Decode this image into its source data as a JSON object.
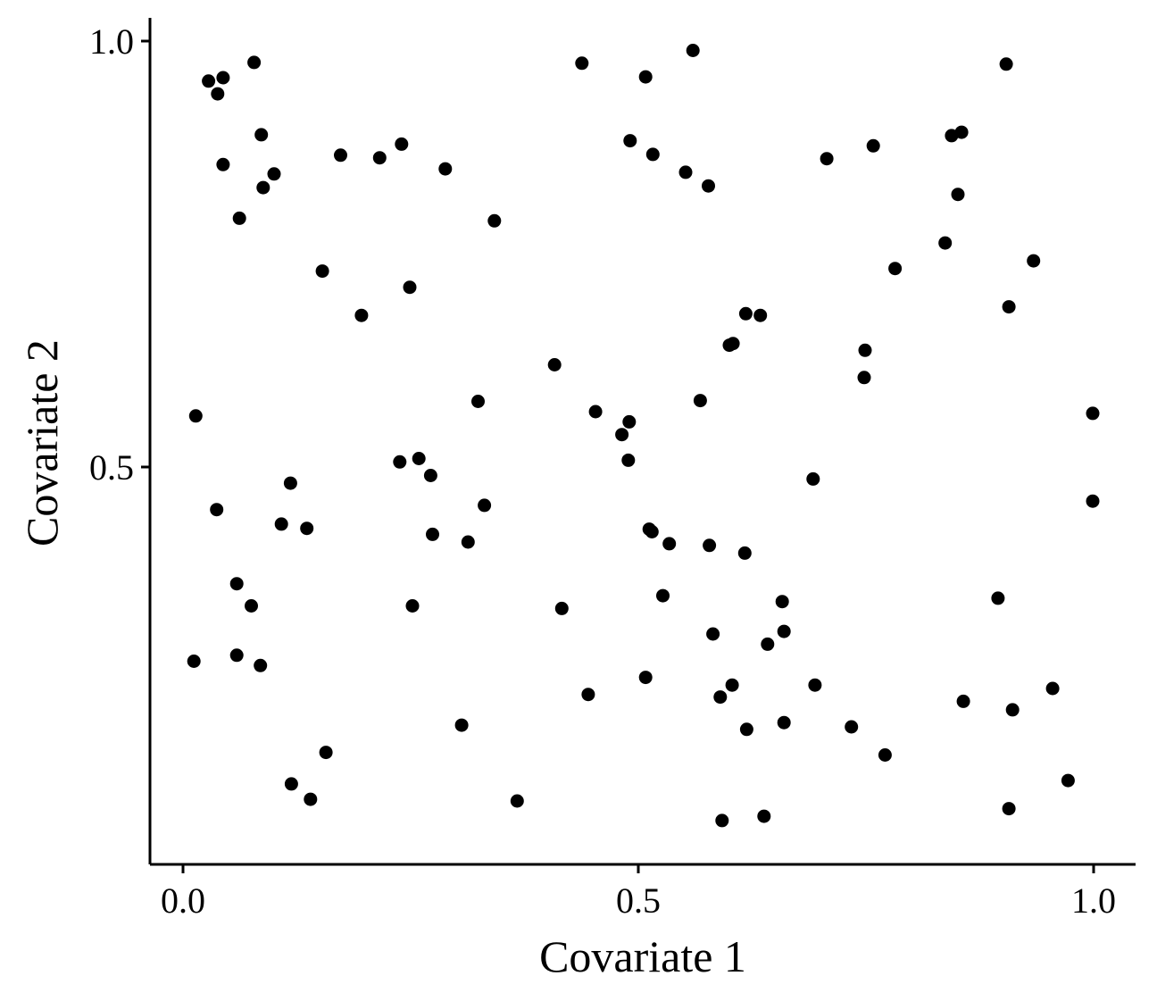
{
  "chart_data": {
    "type": "scatter",
    "xlabel": "Covariate 1",
    "ylabel": "Covariate 2",
    "xlim": [
      -0.035,
      1.045
    ],
    "ylim": [
      0.05,
      1.0
    ],
    "xticks": [
      0.0,
      0.5,
      1.0
    ],
    "xtick_labels": [
      "0.0",
      "0.5",
      "1.0"
    ],
    "yticks": [
      0.5,
      1.0
    ],
    "ytick_labels": [
      "0.5",
      "1.0"
    ],
    "grid": false,
    "point_color": "#000000",
    "points": [
      [
        0.078,
        0.975
      ],
      [
        0.028,
        0.953
      ],
      [
        0.044,
        0.957
      ],
      [
        0.038,
        0.938
      ],
      [
        0.086,
        0.89
      ],
      [
        0.044,
        0.855
      ],
      [
        0.1,
        0.844
      ],
      [
        0.088,
        0.828
      ],
      [
        0.062,
        0.792
      ],
      [
        0.173,
        0.866
      ],
      [
        0.216,
        0.863
      ],
      [
        0.24,
        0.879
      ],
      [
        0.288,
        0.85
      ],
      [
        0.342,
        0.789
      ],
      [
        0.153,
        0.73
      ],
      [
        0.249,
        0.711
      ],
      [
        0.196,
        0.678
      ],
      [
        0.014,
        0.56
      ],
      [
        0.037,
        0.45
      ],
      [
        0.118,
        0.481
      ],
      [
        0.108,
        0.433
      ],
      [
        0.136,
        0.428
      ],
      [
        0.059,
        0.363
      ],
      [
        0.075,
        0.337
      ],
      [
        0.012,
        0.272
      ],
      [
        0.059,
        0.279
      ],
      [
        0.085,
        0.267
      ],
      [
        0.119,
        0.128
      ],
      [
        0.14,
        0.11
      ],
      [
        0.157,
        0.165
      ],
      [
        0.238,
        0.506
      ],
      [
        0.259,
        0.51
      ],
      [
        0.272,
        0.49
      ],
      [
        0.274,
        0.421
      ],
      [
        0.252,
        0.337
      ],
      [
        0.313,
        0.412
      ],
      [
        0.324,
        0.577
      ],
      [
        0.331,
        0.455
      ],
      [
        0.306,
        0.197
      ],
      [
        0.367,
        0.108
      ],
      [
        0.438,
        0.974
      ],
      [
        0.508,
        0.958
      ],
      [
        0.491,
        0.883
      ],
      [
        0.516,
        0.867
      ],
      [
        0.552,
        0.846
      ],
      [
        0.577,
        0.83
      ],
      [
        0.56,
        0.989
      ],
      [
        0.408,
        0.62
      ],
      [
        0.453,
        0.565
      ],
      [
        0.482,
        0.538
      ],
      [
        0.49,
        0.553
      ],
      [
        0.489,
        0.508
      ],
      [
        0.512,
        0.427
      ],
      [
        0.515,
        0.424
      ],
      [
        0.534,
        0.41
      ],
      [
        0.527,
        0.349
      ],
      [
        0.445,
        0.233
      ],
      [
        0.508,
        0.253
      ],
      [
        0.416,
        0.334
      ],
      [
        0.568,
        0.578
      ],
      [
        0.6,
        0.643
      ],
      [
        0.604,
        0.645
      ],
      [
        0.618,
        0.68
      ],
      [
        0.634,
        0.678
      ],
      [
        0.578,
        0.408
      ],
      [
        0.617,
        0.399
      ],
      [
        0.582,
        0.304
      ],
      [
        0.59,
        0.23
      ],
      [
        0.603,
        0.244
      ],
      [
        0.619,
        0.192
      ],
      [
        0.592,
        0.085
      ],
      [
        0.638,
        0.09
      ],
      [
        0.658,
        0.342
      ],
      [
        0.66,
        0.307
      ],
      [
        0.642,
        0.292
      ],
      [
        0.66,
        0.2
      ],
      [
        0.707,
        0.862
      ],
      [
        0.758,
        0.877
      ],
      [
        0.782,
        0.733
      ],
      [
        0.749,
        0.637
      ],
      [
        0.748,
        0.605
      ],
      [
        0.692,
        0.486
      ],
      [
        0.694,
        0.244
      ],
      [
        0.734,
        0.195
      ],
      [
        0.771,
        0.162
      ],
      [
        0.844,
        0.889
      ],
      [
        0.855,
        0.893
      ],
      [
        0.851,
        0.82
      ],
      [
        0.837,
        0.763
      ],
      [
        0.904,
        0.973
      ],
      [
        0.934,
        0.742
      ],
      [
        0.907,
        0.688
      ],
      [
        0.999,
        0.563
      ],
      [
        0.999,
        0.46
      ],
      [
        0.895,
        0.346
      ],
      [
        0.857,
        0.225
      ],
      [
        0.911,
        0.215
      ],
      [
        0.955,
        0.24
      ],
      [
        0.972,
        0.132
      ],
      [
        0.907,
        0.099
      ]
    ]
  }
}
